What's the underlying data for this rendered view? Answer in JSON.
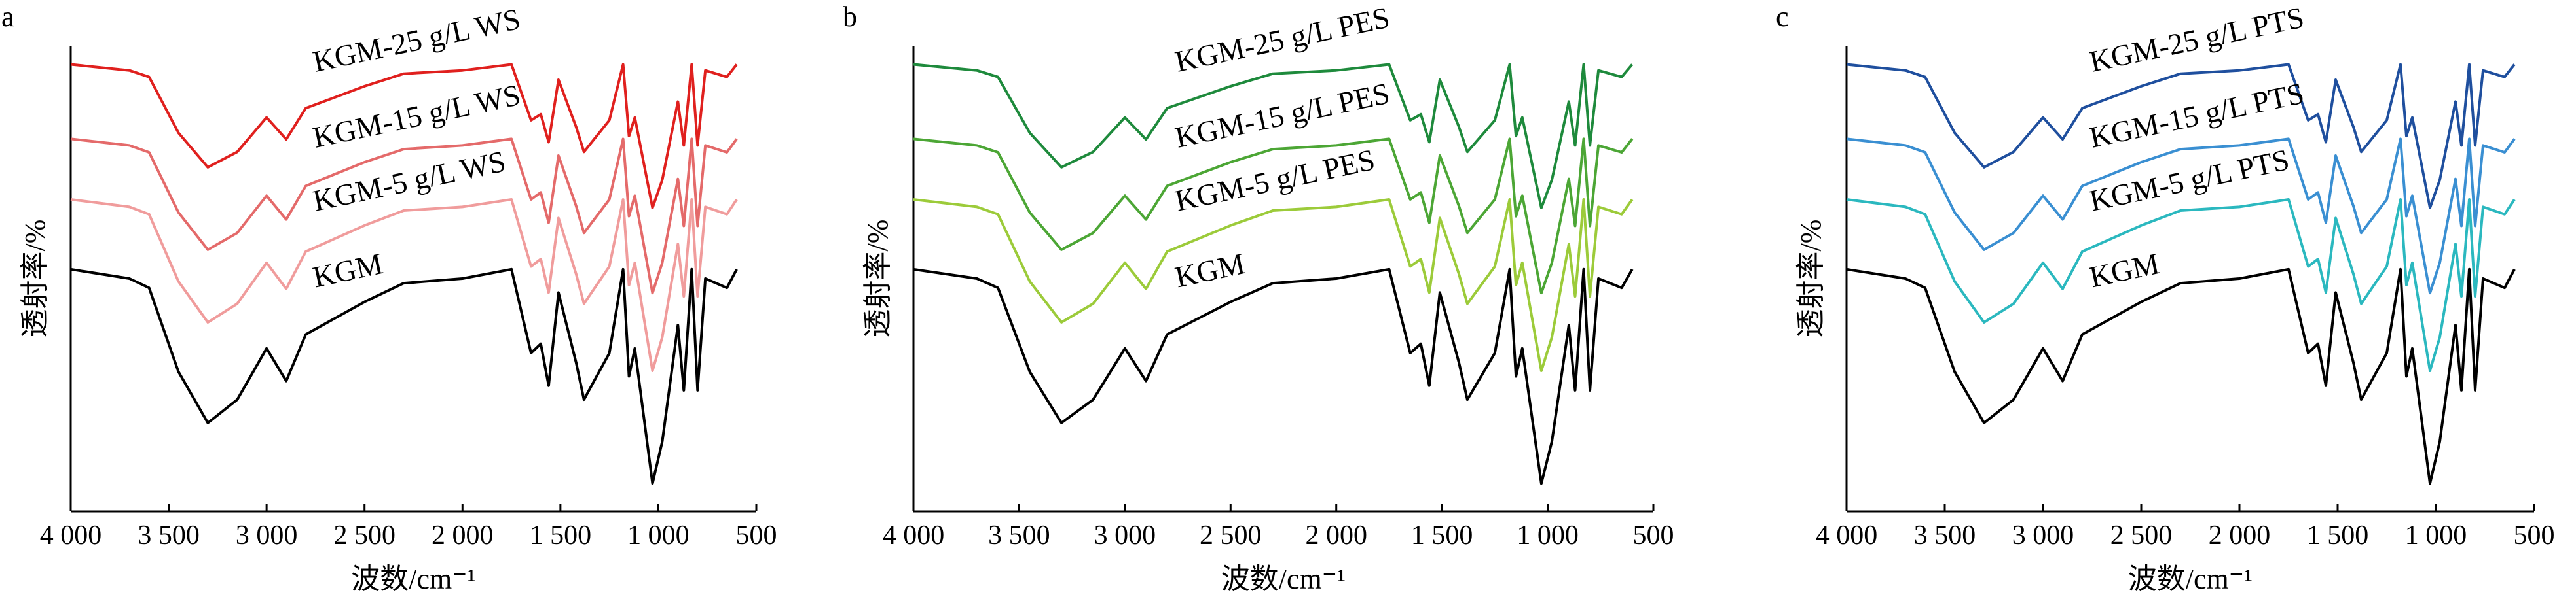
{
  "chart_data": [
    {
      "type": "line",
      "panel_label": "a",
      "xlabel": "波数/cm⁻¹",
      "ylabel": "透射率/%",
      "xlim": [
        4000,
        500
      ],
      "x_reversed": true,
      "xticks": [
        4000,
        3500,
        3000,
        2500,
        2000,
        1500,
        1000,
        500
      ],
      "xtick_labels": [
        "4 000",
        "3 500",
        "3 000",
        "2 500",
        "2 000",
        "1 500",
        "1 000",
        "500"
      ],
      "y_units": "relative transmittance (no tick labels shown)",
      "grid": false,
      "x": [
        4000,
        3700,
        3600,
        3450,
        3300,
        3150,
        3000,
        2900,
        2800,
        2500,
        2300,
        2000,
        1750,
        1650,
        1600,
        1560,
        1510,
        1420,
        1380,
        1250,
        1180,
        1150,
        1120,
        1030,
        980,
        900,
        870,
        830,
        800,
        760,
        650,
        600
      ],
      "series": [
        {
          "name": "KGM-25 g/L WS",
          "color": "#e0201e",
          "values": [
            96,
            94.7,
            93.3,
            81.3,
            73.9,
            77.2,
            84.6,
            79.9,
            86.6,
            91.3,
            94,
            94.7,
            96,
            84,
            85.3,
            79.3,
            92.7,
            82.6,
            77.2,
            84,
            96,
            80.6,
            84.6,
            65.2,
            71.2,
            88,
            78.6,
            96,
            78.6,
            94.7,
            93.3,
            96
          ]
        },
        {
          "name": "KGM-15 g/L WS",
          "color": "#e46a6a",
          "values": [
            80,
            78.6,
            77.1,
            64.2,
            56.2,
            59.8,
            67.8,
            62.7,
            69.9,
            75,
            77.8,
            78.6,
            80,
            67,
            68.5,
            62,
            76.4,
            65.6,
            59.8,
            67,
            80,
            63.4,
            67.8,
            46.9,
            53.4,
            71.4,
            61.3,
            80,
            61.3,
            78.6,
            77.1,
            80
          ]
        },
        {
          "name": "KGM-5 g/L WS",
          "color": "#f09c9c",
          "values": [
            67,
            65.4,
            63.8,
            49.4,
            40.6,
            44.6,
            53.4,
            47.8,
            55.8,
            61.4,
            64.6,
            65.4,
            67,
            52.6,
            54.2,
            47,
            63,
            51,
            44.6,
            52.6,
            67,
            48.6,
            53.4,
            30.2,
            37.4,
            57.4,
            46.2,
            67,
            46.2,
            65.4,
            63.8,
            67
          ]
        },
        {
          "name": "KGM",
          "color": "#000000",
          "values": [
            52,
            50,
            48,
            30,
            19,
            24,
            35,
            28,
            38,
            45,
            49,
            50,
            52,
            34,
            36,
            27,
            47,
            32,
            24,
            34,
            52,
            29,
            35,
            6,
            15,
            40,
            26,
            52,
            26,
            50,
            48,
            52
          ]
        }
      ]
    },
    {
      "type": "line",
      "panel_label": "b",
      "xlabel": "波数/cm⁻¹",
      "ylabel": "透射率/%",
      "xlim": [
        4000,
        500
      ],
      "x_reversed": true,
      "xticks": [
        4000,
        3500,
        3000,
        2500,
        2000,
        1500,
        1000,
        500
      ],
      "xtick_labels": [
        "4 000",
        "3 500",
        "3 000",
        "2 500",
        "2 000",
        "1 500",
        "1 000",
        "500"
      ],
      "y_units": "relative transmittance (no tick labels shown)",
      "grid": false,
      "x": [
        4000,
        3700,
        3600,
        3450,
        3300,
        3150,
        3000,
        2900,
        2800,
        2500,
        2300,
        2000,
        1750,
        1650,
        1600,
        1560,
        1510,
        1420,
        1380,
        1250,
        1180,
        1150,
        1120,
        1030,
        980,
        900,
        870,
        830,
        800,
        760,
        650,
        600
      ],
      "series": [
        {
          "name": "KGM-25 g/L PES",
          "color": "#1e8a3c",
          "values": [
            96,
            94.7,
            93.3,
            81.3,
            73.9,
            77.2,
            84.6,
            79.9,
            86.6,
            91.3,
            94,
            94.7,
            96,
            84,
            85.3,
            79.3,
            92.7,
            82.6,
            77.2,
            84,
            96,
            80.6,
            84.6,
            65.2,
            71.2,
            88,
            78.6,
            96,
            78.6,
            94.7,
            93.3,
            96
          ]
        },
        {
          "name": "KGM-15 g/L PES",
          "color": "#4ca635",
          "values": [
            80,
            78.6,
            77.1,
            64.2,
            56.2,
            59.8,
            67.8,
            62.7,
            69.9,
            75,
            77.8,
            78.6,
            80,
            67,
            68.5,
            62,
            76.4,
            65.6,
            59.8,
            67,
            80,
            63.4,
            67.8,
            46.9,
            53.4,
            71.4,
            61.3,
            80,
            61.3,
            78.6,
            77.1,
            80
          ]
        },
        {
          "name": "KGM-5 g/L PES",
          "color": "#9ccb3a",
          "values": [
            67,
            65.4,
            63.8,
            49.4,
            40.6,
            44.6,
            53.4,
            47.8,
            55.8,
            61.4,
            64.6,
            65.4,
            67,
            52.6,
            54.2,
            47,
            63,
            51,
            44.6,
            52.6,
            67,
            48.6,
            53.4,
            30.2,
            37.4,
            57.4,
            46.2,
            67,
            46.2,
            65.4,
            63.8,
            67
          ]
        },
        {
          "name": "KGM",
          "color": "#000000",
          "values": [
            52,
            50,
            48,
            30,
            19,
            24,
            35,
            28,
            38,
            45,
            49,
            50,
            52,
            34,
            36,
            27,
            47,
            32,
            24,
            34,
            52,
            29,
            35,
            6,
            15,
            40,
            26,
            52,
            26,
            50,
            48,
            52
          ]
        }
      ]
    },
    {
      "type": "line",
      "panel_label": "c",
      "xlabel": "波数/cm⁻¹",
      "ylabel": "透射率/%",
      "xlim": [
        4000,
        500
      ],
      "x_reversed": true,
      "xticks": [
        4000,
        3500,
        3000,
        2500,
        2000,
        1500,
        1000,
        500
      ],
      "xtick_labels": [
        "4 000",
        "3 500",
        "3 000",
        "2 500",
        "2 000",
        "1 500",
        "1 000",
        "500"
      ],
      "y_units": "relative transmittance (no tick labels shown)",
      "grid": false,
      "x": [
        4000,
        3700,
        3600,
        3450,
        3300,
        3150,
        3000,
        2900,
        2800,
        2500,
        2300,
        2000,
        1750,
        1650,
        1600,
        1560,
        1510,
        1420,
        1380,
        1250,
        1180,
        1150,
        1120,
        1030,
        980,
        900,
        870,
        830,
        800,
        760,
        650,
        600
      ],
      "series": [
        {
          "name": "KGM-25 g/L PTS",
          "color": "#1f4f9e",
          "values": [
            96,
            94.7,
            93.3,
            81.3,
            73.9,
            77.2,
            84.6,
            79.9,
            86.6,
            91.3,
            94,
            94.7,
            96,
            84,
            85.3,
            79.3,
            92.7,
            82.6,
            77.2,
            84,
            96,
            80.6,
            84.6,
            65.2,
            71.2,
            88,
            78.6,
            96,
            78.6,
            94.7,
            93.3,
            96
          ]
        },
        {
          "name": "KGM-15 g/L PTS",
          "color": "#3a8fd2",
          "values": [
            80,
            78.6,
            77.1,
            64.2,
            56.2,
            59.8,
            67.8,
            62.7,
            69.9,
            75,
            77.8,
            78.6,
            80,
            67,
            68.5,
            62,
            76.4,
            65.6,
            59.8,
            67,
            80,
            63.4,
            67.8,
            46.9,
            53.4,
            71.4,
            61.3,
            80,
            61.3,
            78.6,
            77.1,
            80
          ]
        },
        {
          "name": "KGM-5 g/L PTS",
          "color": "#2bb8bf",
          "values": [
            67,
            65.4,
            63.8,
            49.4,
            40.6,
            44.6,
            53.4,
            47.8,
            55.8,
            61.4,
            64.6,
            65.4,
            67,
            52.6,
            54.2,
            47,
            63,
            51,
            44.6,
            52.6,
            67,
            48.6,
            53.4,
            30.2,
            37.4,
            57.4,
            46.2,
            67,
            46.2,
            65.4,
            63.8,
            67
          ]
        },
        {
          "name": "KGM",
          "color": "#000000",
          "values": [
            52,
            50,
            48,
            30,
            19,
            24,
            35,
            28,
            38,
            45,
            49,
            50,
            52,
            34,
            36,
            27,
            47,
            32,
            24,
            34,
            52,
            29,
            35,
            6,
            15,
            40,
            26,
            52,
            26,
            50,
            48,
            52
          ]
        }
      ]
    }
  ]
}
